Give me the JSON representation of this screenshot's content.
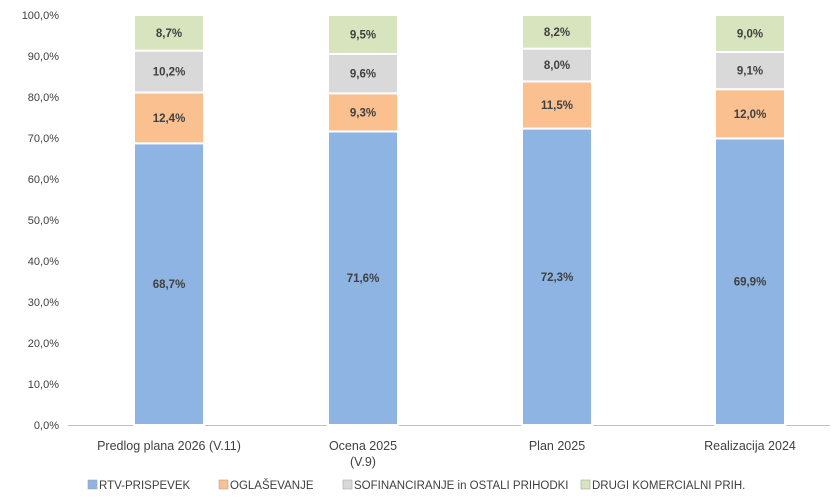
{
  "chart_data": {
    "type": "bar",
    "stacked": true,
    "title": "",
    "xlabel": "",
    "ylabel": "",
    "ylim": [
      0,
      100
    ],
    "y_ticks": [
      "0,0%",
      "10,0%",
      "20,0%",
      "30,0%",
      "40,0%",
      "50,0%",
      "60,0%",
      "70,0%",
      "80,0%",
      "90,0%",
      "100,0%"
    ],
    "categories": [
      [
        "Predlog plana 2026 (V.11)"
      ],
      [
        "Ocena 2025",
        "(V.9)"
      ],
      [
        "Plan 2025"
      ],
      [
        "Realizacija 2024"
      ]
    ],
    "series": [
      {
        "name": "RTV-PRISPEVEK",
        "color": "#8DB4E2",
        "values": [
          68.7,
          71.6,
          72.3,
          69.9
        ],
        "labels": [
          "68,7%",
          "71,6%",
          "72,3%",
          "69,9%"
        ]
      },
      {
        "name": "OGLAŠEVANJE",
        "color": "#FAC090",
        "values": [
          12.4,
          9.3,
          11.5,
          12.0
        ],
        "labels": [
          "12,4%",
          "9,3%",
          "11,5%",
          "12,0%"
        ]
      },
      {
        "name": "SOFINANCIRANJE in OSTALI PRIHODKI",
        "color": "#D9D9D9",
        "values": [
          10.2,
          9.6,
          8.0,
          9.1
        ],
        "labels": [
          "10,2%",
          "9,6%",
          "8,0%",
          "9,1%"
        ]
      },
      {
        "name": "DRUGI KOMERCIALNI PRIH.",
        "color": "#D7E4BD",
        "values": [
          8.7,
          9.5,
          8.2,
          9.0
        ],
        "labels": [
          "8,7%",
          "9,5%",
          "8,2%",
          "9,0%"
        ]
      }
    ],
    "legend_position": "bottom",
    "grid": false
  }
}
